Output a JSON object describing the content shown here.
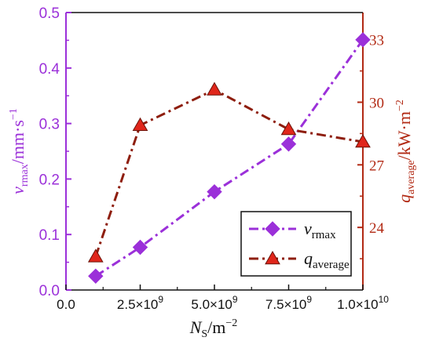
{
  "chart_data": {
    "type": "line",
    "x": [
      1000000000.0,
      2500000000.0,
      5000000000.0,
      7500000000.0,
      10000000000.0
    ],
    "x_ticks": [
      0.0,
      2500000000.0,
      5000000000.0,
      7500000000.0,
      10000000000.0
    ],
    "x_tick_labels": [
      {
        "mant": "0.0",
        "exp": ""
      },
      {
        "mant": "2.5×10",
        "exp": "9"
      },
      {
        "mant": "5.0×10",
        "exp": "9"
      },
      {
        "mant": "7.5×10",
        "exp": "9"
      },
      {
        "mant": "1.0×10",
        "exp": "10"
      }
    ],
    "xlim": [
      0,
      10000000000.0
    ],
    "xlabel": {
      "main": "N",
      "sub": "S",
      "unit": "/m",
      "sup": "−2"
    },
    "y_left": {
      "label": {
        "main": "v",
        "sub": "rmax",
        "unit": "/mm·s",
        "sup": "−1"
      },
      "lim": [
        0,
        0.5
      ],
      "ticks": [
        0.0,
        0.1,
        0.2,
        0.3,
        0.4,
        0.5
      ],
      "tick_labels": [
        "0.0",
        "0.1",
        "0.2",
        "0.3",
        "0.4",
        "0.5"
      ],
      "color": "#9b30d9"
    },
    "y_right": {
      "label": {
        "main": "q",
        "sub": "average",
        "unit": "/kW·m",
        "sup": "−2"
      },
      "lim": [
        21,
        34.3
      ],
      "ticks": [
        24,
        27,
        30,
        33
      ],
      "tick_labels": [
        "24",
        "27",
        "30",
        "33"
      ],
      "color": "#b22a14"
    },
    "series": [
      {
        "name": {
          "main": "v",
          "sub": "rmax"
        },
        "axis": "left",
        "values": [
          0.025,
          0.077,
          0.177,
          0.263,
          0.451
        ],
        "color": "#9b30d9",
        "marker": "diamond",
        "line": "dash-dot"
      },
      {
        "name": {
          "main": "q",
          "sub": "average"
        },
        "axis": "right",
        "values": [
          22.6,
          28.9,
          30.6,
          28.7,
          28.1
        ],
        "color": "#8e1e0e",
        "marker_color": "#e0261b",
        "marker": "triangle",
        "line": "dash-dot"
      }
    ],
    "legend": {
      "position": "bottom-right"
    },
    "grid": false
  }
}
